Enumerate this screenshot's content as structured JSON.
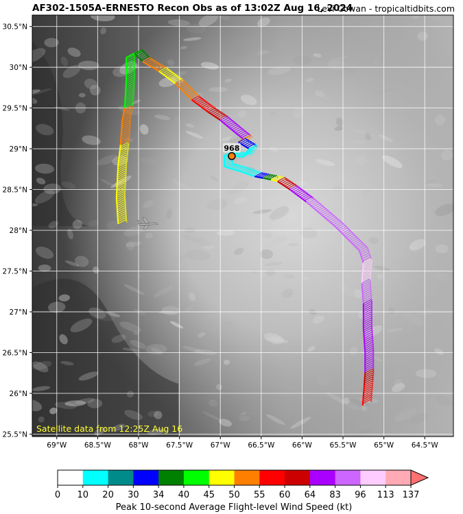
{
  "header": {
    "title": "AF302-1505A-ERNESTO Recon Obs as of 13:02Z Aug 16, 2024",
    "credit": "Levi Cowan - tropicaltidbits.com"
  },
  "map": {
    "satellite_label": "Satellite data from 12:25Z Aug 16",
    "lon_ticks": [
      "69°W",
      "68.5°W",
      "68°W",
      "67.5°W",
      "67°W",
      "66.5°W",
      "66°W",
      "65.5°W",
      "65°W",
      "64.5°W"
    ],
    "lon_values": [
      -69,
      -68.5,
      -68,
      -67.5,
      -67,
      -66.5,
      -66,
      -65.5,
      -65,
      -64.5
    ],
    "lat_ticks": [
      "30.5°N",
      "30°N",
      "29.5°N",
      "29°N",
      "28.5°N",
      "28°N",
      "27.5°N",
      "27°N",
      "26.5°N",
      "26°N",
      "25.5°N"
    ],
    "lat_values": [
      30.5,
      30,
      29.5,
      29,
      28.5,
      28,
      27.5,
      27,
      26.5,
      26,
      25.5
    ],
    "extent": {
      "lon_min": -69.3,
      "lon_max": -64.15,
      "lat_min": 25.47,
      "lat_max": 30.64
    },
    "center_pressure": "968",
    "center": {
      "lon": -66.86,
      "lat": 28.91
    },
    "aircraft": {
      "lon": -67.9,
      "lat": 28.08
    }
  },
  "colorbar": {
    "label": "Peak 10-second Average Flight-level Wind Speed (kt)",
    "ticks": [
      "0",
      "10",
      "20",
      "30",
      "34",
      "40",
      "45",
      "50",
      "55",
      "60",
      "64",
      "83",
      "96",
      "113",
      "137"
    ],
    "colors": [
      "#ffffff",
      "#00ffff",
      "#008b8b",
      "#0000ff",
      "#008000",
      "#00ff00",
      "#ffff00",
      "#ff8000",
      "#ff0000",
      "#cc0000",
      "#aa00ff",
      "#cc66ff",
      "#ffccff",
      "#ffaab4"
    ],
    "extend_color": "#ff7070"
  },
  "flight_track": [
    {
      "lon": -68.25,
      "lat": 28.08,
      "color": "#ffff00"
    },
    {
      "lon": -68.27,
      "lat": 28.4,
      "color": "#ffff00"
    },
    {
      "lon": -68.25,
      "lat": 28.8,
      "color": "#ffff00"
    },
    {
      "lon": -68.22,
      "lat": 29.05,
      "color": "#ff8000"
    },
    {
      "lon": -68.2,
      "lat": 29.35,
      "color": "#ff8000"
    },
    {
      "lon": -68.17,
      "lat": 29.5,
      "color": "#00ff00"
    },
    {
      "lon": -68.15,
      "lat": 29.85,
      "color": "#00ff00"
    },
    {
      "lon": -68.15,
      "lat": 30.12,
      "color": "#00ff00"
    },
    {
      "lon": -68.05,
      "lat": 30.17,
      "color": "#008000"
    },
    {
      "lon": -67.95,
      "lat": 30.07,
      "color": "#ff8000"
    },
    {
      "lon": -67.75,
      "lat": 29.95,
      "color": "#ffff00"
    },
    {
      "lon": -67.55,
      "lat": 29.8,
      "color": "#ff8000"
    },
    {
      "lon": -67.35,
      "lat": 29.6,
      "color": "#ff0000"
    },
    {
      "lon": -67.15,
      "lat": 29.45,
      "color": "#cc0000"
    },
    {
      "lon": -67.0,
      "lat": 29.35,
      "color": "#aa00ff"
    },
    {
      "lon": -66.82,
      "lat": 29.2,
      "color": "#aa00ff"
    },
    {
      "lon": -66.72,
      "lat": 29.12,
      "color": "#ff8000"
    },
    {
      "lon": -66.78,
      "lat": 29.08,
      "color": "#0000ff"
    },
    {
      "lon": -66.65,
      "lat": 29.0,
      "color": "#00ffff"
    },
    {
      "lon": -66.72,
      "lat": 28.9,
      "color": "#00ffff"
    },
    {
      "lon": -66.95,
      "lat": 28.92,
      "color": "#00ffff"
    },
    {
      "lon": -66.95,
      "lat": 28.78,
      "color": "#00ffff"
    },
    {
      "lon": -66.75,
      "lat": 28.72,
      "color": "#00ffff"
    },
    {
      "lon": -66.58,
      "lat": 28.66,
      "color": "#0000ff"
    },
    {
      "lon": -66.48,
      "lat": 28.64,
      "color": "#008000"
    },
    {
      "lon": -66.38,
      "lat": 28.62,
      "color": "#ffff00"
    },
    {
      "lon": -66.3,
      "lat": 28.6,
      "color": "#cc0000"
    },
    {
      "lon": -66.15,
      "lat": 28.5,
      "color": "#aa00ff"
    },
    {
      "lon": -65.95,
      "lat": 28.35,
      "color": "#cc66ff"
    },
    {
      "lon": -65.6,
      "lat": 28.05,
      "color": "#cc66ff"
    },
    {
      "lon": -65.3,
      "lat": 27.75,
      "color": "#cc66ff"
    },
    {
      "lon": -65.25,
      "lat": 27.6,
      "color": "#ffccff"
    },
    {
      "lon": -65.27,
      "lat": 27.35,
      "color": "#cc66ff"
    },
    {
      "lon": -65.25,
      "lat": 27.1,
      "color": "#aa00ff"
    },
    {
      "lon": -65.25,
      "lat": 26.8,
      "color": "#aa00ff"
    },
    {
      "lon": -65.23,
      "lat": 26.5,
      "color": "#aa00ff"
    },
    {
      "lon": -65.23,
      "lat": 26.25,
      "color": "#cc0000"
    },
    {
      "lon": -65.24,
      "lat": 26.1,
      "color": "#ff0000"
    },
    {
      "lon": -65.26,
      "lat": 25.85,
      "color": "#ff8000"
    }
  ]
}
